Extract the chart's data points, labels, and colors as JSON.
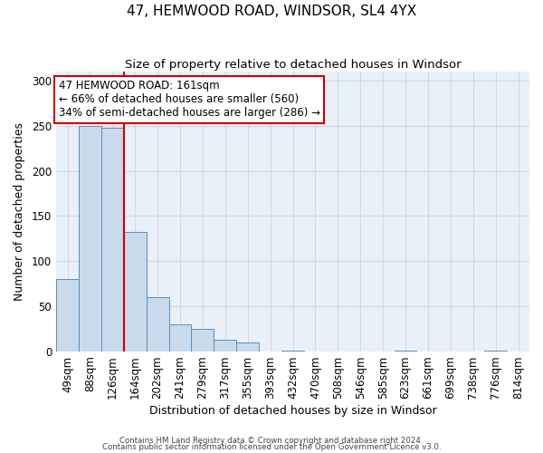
{
  "title": "47, HEMWOOD ROAD, WINDSOR, SL4 4YX",
  "subtitle": "Size of property relative to detached houses in Windsor",
  "xlabel": "Distribution of detached houses by size in Windsor",
  "ylabel": "Number of detached properties",
  "bin_labels": [
    "49sqm",
    "88sqm",
    "126sqm",
    "164sqm",
    "202sqm",
    "241sqm",
    "279sqm",
    "317sqm",
    "355sqm",
    "393sqm",
    "432sqm",
    "470sqm",
    "508sqm",
    "546sqm",
    "585sqm",
    "623sqm",
    "661sqm",
    "699sqm",
    "738sqm",
    "776sqm",
    "814sqm"
  ],
  "bar_heights": [
    80,
    250,
    248,
    132,
    60,
    30,
    25,
    13,
    10,
    0,
    1,
    0,
    0,
    0,
    0,
    1,
    0,
    0,
    0,
    1,
    0
  ],
  "bar_color": "#c9daea",
  "bar_edge_color": "#5b8db8",
  "vline_x_index": 2,
  "vline_color": "#cc0000",
  "annotation_line1": "47 HEMWOOD ROAD: 161sqm",
  "annotation_line2": "← 66% of detached houses are smaller (560)",
  "annotation_line3": "34% of semi-detached houses are larger (286) →",
  "annotation_box_color": "#cc0000",
  "ylim": [
    0,
    310
  ],
  "yticks": [
    0,
    50,
    100,
    150,
    200,
    250,
    300
  ],
  "grid_color": "#d0d8e8",
  "bg_color": "#eaf0f8",
  "footnote1": "Contains HM Land Registry data © Crown copyright and database right 2024.",
  "footnote2": "Contains public sector information licensed under the Open Government Licence v3.0."
}
